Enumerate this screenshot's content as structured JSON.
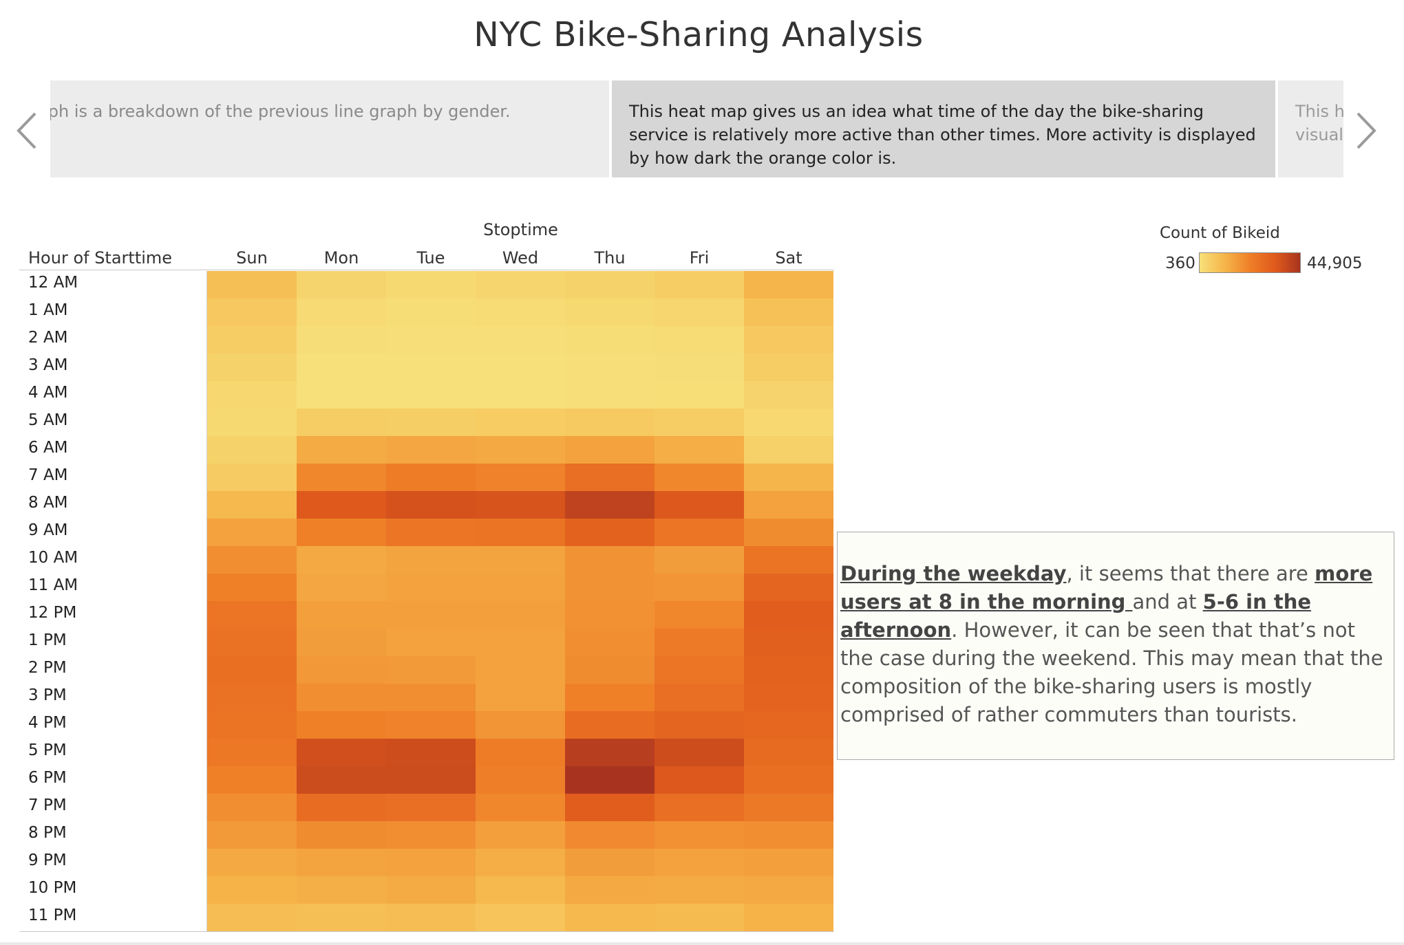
{
  "title": "NYC Bike-Sharing Analysis",
  "captions": {
    "previous": "aph is a breakdown of the previous line graph by gender.",
    "current": "This heat map gives us an idea what time of the day the bike-sharing service is relatively more active than other times. More activity is displayed by how dark the orange color is.",
    "next_line1": "This he",
    "next_line2": "visual"
  },
  "annotation": {
    "part1": "During the weekday",
    "part2": ", it seems that there are ",
    "part3": "more users at 8 in the morning ",
    "part4": "and at ",
    "part5": "5-6 in the afternoon",
    "part6": ". However, it can be seen that that’s not the case during the weekend. This may mean that the composition of the bike-sharing users is mostly comprised of rather commuters than tourists."
  },
  "colors": {
    "low": "#f7e07a",
    "mid1": "#f5b54a",
    "mid2": "#ef7f28",
    "high": "#e05a1c",
    "max": "#a8341f"
  },
  "chart_data": {
    "type": "heatmap",
    "title": "",
    "xlabel": "Stoptime",
    "ylabel": "Hour of Starttime",
    "x": [
      "Sun",
      "Mon",
      "Tue",
      "Wed",
      "Thu",
      "Fri",
      "Sat"
    ],
    "y": [
      "12 AM",
      "1 AM",
      "2 AM",
      "3 AM",
      "4 AM",
      "5 AM",
      "6 AM",
      "7 AM",
      "8 AM",
      "9 AM",
      "10 AM",
      "11 AM",
      "12 PM",
      "1 PM",
      "2 PM",
      "3 PM",
      "4 PM",
      "5 PM",
      "6 PM",
      "7 PM",
      "8 PM",
      "9 PM",
      "10 PM",
      "11 PM"
    ],
    "values": [
      [
        9000,
        3400,
        2300,
        3100,
        4100,
        5200,
        11500
      ],
      [
        6700,
        2000,
        1200,
        1600,
        2200,
        3000,
        8200
      ],
      [
        5300,
        1100,
        800,
        900,
        1200,
        1700,
        6600
      ],
      [
        3900,
        700,
        500,
        600,
        800,
        1100,
        5200
      ],
      [
        2800,
        700,
        500,
        600,
        800,
        1000,
        3700
      ],
      [
        2200,
        5300,
        5000,
        5600,
        6200,
        5400,
        2500
      ],
      [
        4000,
        13500,
        14500,
        14000,
        15400,
        13000,
        4500
      ],
      [
        5800,
        21000,
        23500,
        22000,
        27500,
        21000,
        11500
      ],
      [
        10500,
        34000,
        36000,
        35500,
        40500,
        34500,
        15500
      ],
      [
        15500,
        22500,
        25500,
        26000,
        31500,
        25500,
        20000
      ],
      [
        19500,
        14000,
        15000,
        15000,
        18500,
        16500,
        26000
      ],
      [
        22500,
        14500,
        15500,
        15500,
        18500,
        18000,
        30500
      ],
      [
        25500,
        16000,
        16000,
        16000,
        19000,
        21000,
        33000
      ],
      [
        26500,
        16500,
        15500,
        15500,
        19500,
        24000,
        32000
      ],
      [
        27000,
        17500,
        17000,
        15500,
        20000,
        25500,
        31500
      ],
      [
        26500,
        19500,
        19500,
        15500,
        22500,
        27500,
        31000
      ],
      [
        26000,
        22500,
        22000,
        18000,
        28000,
        30500,
        30000
      ],
      [
        25000,
        37000,
        37500,
        23500,
        42000,
        37500,
        28500
      ],
      [
        22500,
        38000,
        38000,
        23000,
        44905,
        34500,
        27000
      ],
      [
        19500,
        28000,
        27500,
        21000,
        33000,
        27500,
        24500
      ],
      [
        17000,
        20000,
        19500,
        16000,
        20500,
        19000,
        19500
      ],
      [
        14000,
        15000,
        15500,
        13000,
        16500,
        15500,
        16000
      ],
      [
        12000,
        12500,
        13500,
        10500,
        14000,
        13500,
        14000
      ],
      [
        9500,
        9000,
        9500,
        7500,
        10500,
        10000,
        12000
      ]
    ],
    "colorbar": {
      "title": "Count of Bikeid",
      "min": 360,
      "max": 44905,
      "min_label": "360",
      "max_label": "44,905"
    }
  }
}
